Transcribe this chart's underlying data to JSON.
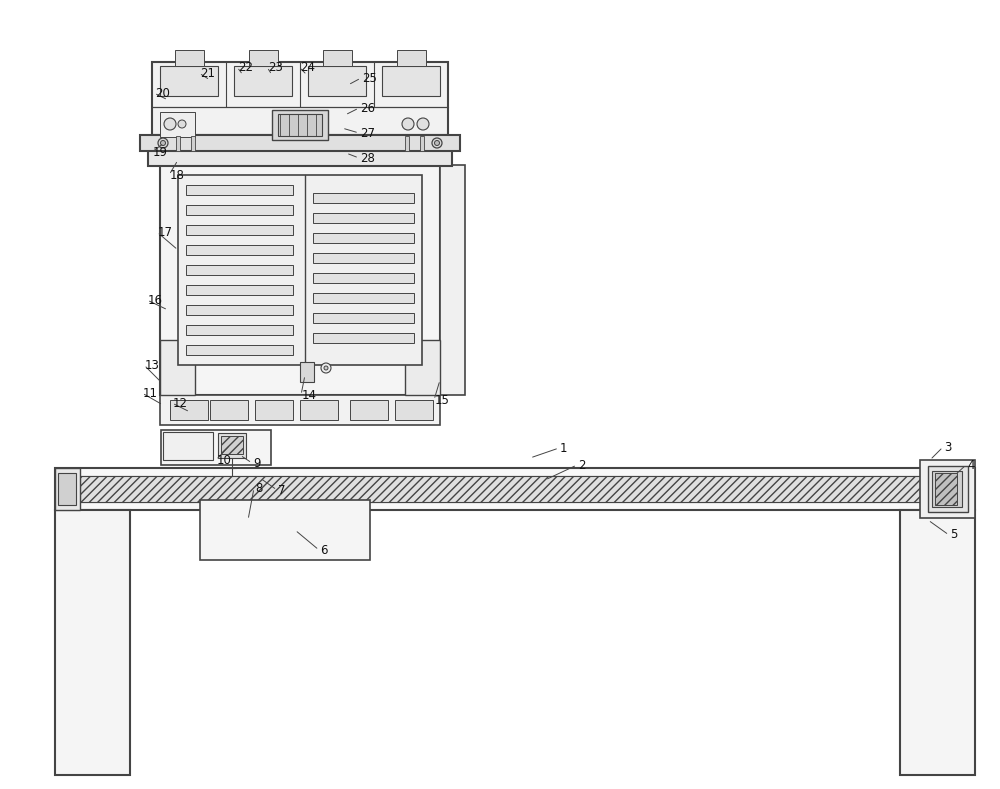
{
  "bg_color": "#ffffff",
  "lc": "#444444",
  "lc_dark": "#222222",
  "fill_light": "#f5f5f5",
  "fill_med": "#e8e8e8",
  "fill_dark": "#d0d0d0",
  "hatch_color": "#aaaaaa"
}
